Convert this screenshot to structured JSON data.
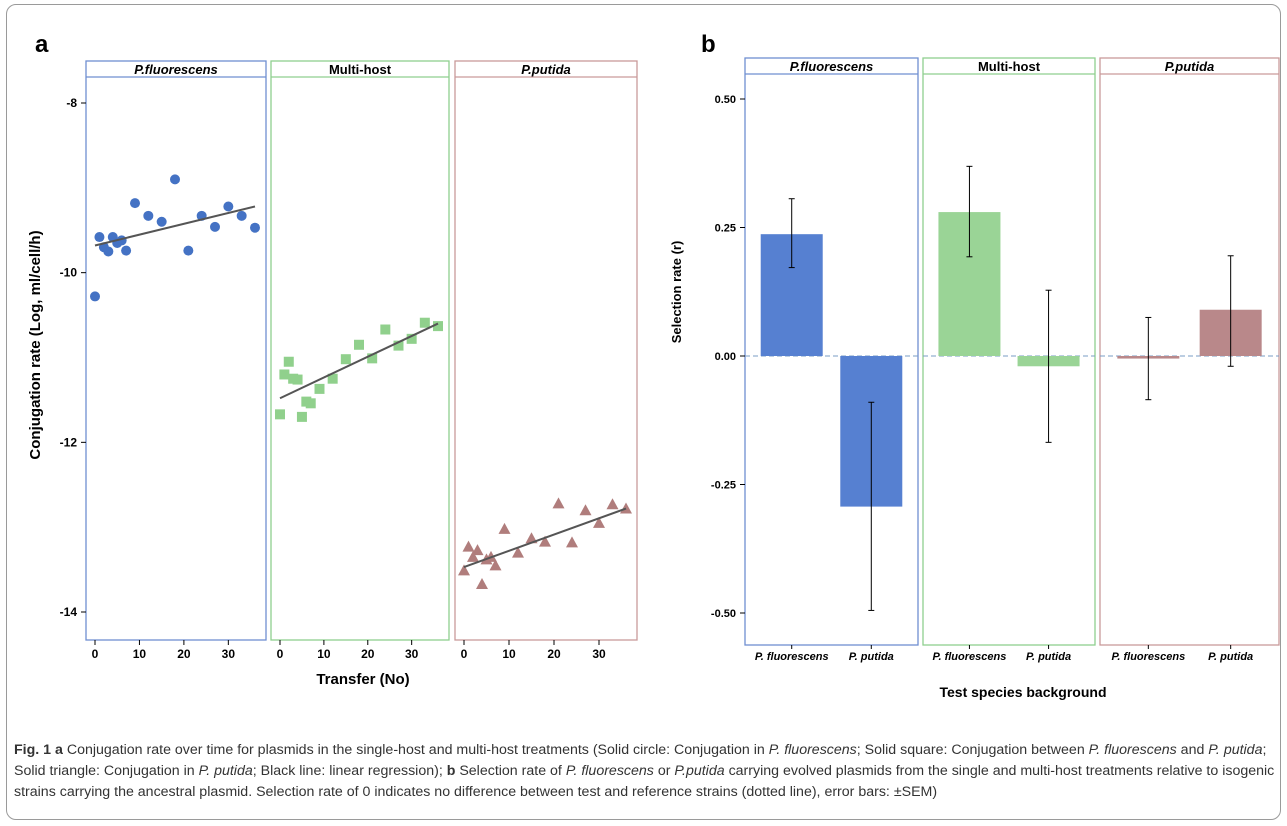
{
  "panel_a": {
    "letter": "a",
    "facets": [
      "P.fluorescens",
      "Multi-host",
      "P.putida"
    ],
    "facet_colors": [
      "#6f8fd1",
      "#8fcf8f",
      "#c99a9a"
    ],
    "ylabel": "Conjugation rate (Log, ml/cell/h)",
    "xlabel": "Transfer (No)",
    "y_ticks": [
      "-8",
      "-10",
      "-12",
      "-14"
    ],
    "x_ticks": [
      "0",
      "10",
      "20",
      "30"
    ]
  },
  "panel_b": {
    "letter": "b",
    "facets": [
      "P.fluorescens",
      "Multi-host",
      "P.putida"
    ],
    "facet_colors": [
      "#6f8fd1",
      "#8fcf8f",
      "#c99a9a"
    ],
    "ylabel": "Selection rate (r)",
    "xlabel": "Test species background",
    "y_ticks": [
      "0.50",
      "0.25",
      "0.00",
      "-0.25",
      "-0.50"
    ],
    "x_ticks": [
      "P. fluorescens",
      "P. putida"
    ]
  },
  "chart_data": [
    {
      "type": "scatter",
      "facets": [
        "P.fluorescens",
        "Multi-host",
        "P.putida"
      ],
      "xlabel": "Transfer (No)",
      "ylabel": "Conjugation rate (Log, ml/cell/h)",
      "xlim": [
        -2,
        38
      ],
      "ylim": [
        -14.6,
        -7.7
      ],
      "series": [
        {
          "facet": "P.fluorescens",
          "marker": "circle",
          "color": "#4472c4",
          "points": [
            [
              0,
              -10.28
            ],
            [
              1,
              -9.58
            ],
            [
              2,
              -9.7
            ],
            [
              3,
              -9.75
            ],
            [
              4,
              -9.58
            ],
            [
              5,
              -9.65
            ],
            [
              6,
              -9.62
            ],
            [
              7,
              -9.74
            ],
            [
              9,
              -9.18
            ],
            [
              12,
              -9.33
            ],
            [
              15,
              -9.4
            ],
            [
              18,
              -8.9
            ],
            [
              21,
              -9.74
            ],
            [
              24,
              -9.33
            ],
            [
              27,
              -9.46
            ],
            [
              30,
              -9.22
            ],
            [
              33,
              -9.33
            ],
            [
              36,
              -9.47
            ]
          ],
          "trend": [
            [
              0,
              -9.68
            ],
            [
              36,
              -9.22
            ]
          ]
        },
        {
          "facet": "Multi-host",
          "marker": "square",
          "color": "#90d08c",
          "points": [
            [
              0,
              -11.67
            ],
            [
              1,
              -11.2
            ],
            [
              2,
              -11.05
            ],
            [
              3,
              -11.25
            ],
            [
              4,
              -11.26
            ],
            [
              5,
              -11.7
            ],
            [
              6,
              -11.52
            ],
            [
              7,
              -11.54
            ],
            [
              9,
              -11.37
            ],
            [
              12,
              -11.25
            ],
            [
              15,
              -11.02
            ],
            [
              18,
              -10.85
            ],
            [
              21,
              -11.01
            ],
            [
              24,
              -10.67
            ],
            [
              27,
              -10.86
            ],
            [
              30,
              -10.78
            ],
            [
              33,
              -10.59
            ],
            [
              36,
              -10.63
            ]
          ],
          "trend": [
            [
              0,
              -11.48
            ],
            [
              36,
              -10.6
            ]
          ]
        },
        {
          "facet": "P.putida",
          "marker": "triangle",
          "color": "#b07d7c",
          "points": [
            [
              0,
              -13.51
            ],
            [
              1,
              -13.23
            ],
            [
              2,
              -13.35
            ],
            [
              3,
              -13.27
            ],
            [
              4,
              -13.67
            ],
            [
              5,
              -13.38
            ],
            [
              6,
              -13.35
            ],
            [
              7,
              -13.45
            ],
            [
              9,
              -13.02
            ],
            [
              12,
              -13.3
            ],
            [
              15,
              -13.13
            ],
            [
              18,
              -13.17
            ],
            [
              21,
              -12.72
            ],
            [
              24,
              -13.18
            ],
            [
              27,
              -12.8
            ],
            [
              30,
              -12.95
            ],
            [
              33,
              -12.73
            ],
            [
              36,
              -12.78
            ]
          ],
          "trend": [
            [
              0,
              -13.47
            ],
            [
              36,
              -12.78
            ]
          ]
        }
      ]
    },
    {
      "type": "bar",
      "facets": [
        "P.fluorescens",
        "Multi-host",
        "P.putida"
      ],
      "categories": [
        "P. fluorescens",
        "P. putida"
      ],
      "xlabel": "Test species background",
      "ylabel": "Selection rate (r)",
      "ylim": [
        -0.56,
        0.56
      ],
      "reference_line": 0.0,
      "series": [
        {
          "facet": "P.fluorescens",
          "color": "#5680d1",
          "values": [
            0.237,
            -0.293
          ],
          "err_low": [
            0.172,
            -0.495
          ],
          "err_high": [
            0.306,
            -0.09
          ]
        },
        {
          "facet": "Multi-host",
          "color": "#9ad496",
          "values": [
            0.28,
            -0.02
          ],
          "err_low": [
            0.193,
            -0.168
          ],
          "err_high": [
            0.369,
            0.128
          ]
        },
        {
          "facet": "P.putida",
          "color": "#b9888a",
          "values": [
            -0.005,
            0.09
          ],
          "err_low": [
            -0.085,
            -0.02
          ],
          "err_high": [
            0.075,
            0.195
          ]
        }
      ]
    }
  ],
  "caption": {
    "fig_label": "Fig. 1",
    "a_letter": "a",
    "text1": " Conjugation rate over time for plasmids in the single-host and multi-host treatments (Solid circle: Conjugation in ",
    "it1": "P. fluorescens",
    "text2": "; Solid square: Conjugation between ",
    "it2": "P. fluorescens",
    "text3": " and ",
    "it3": "P. putida",
    "text4": "; Solid triangle: Conjugation in ",
    "it4": "P. putida",
    "text5": "; Black line: linear regression); ",
    "b_letter": "b",
    "text6": " Selection rate of ",
    "it5": "P. fluorescens",
    "text7": " or ",
    "it6": "P.putida",
    "text8": " carrying evolved plasmids from the single and multi-host treatments relative to isogenic strains carrying the ancestral plasmid. Selection rate of 0 indicates no difference between test and reference strains (dotted line), error bars: ±SEM)"
  }
}
